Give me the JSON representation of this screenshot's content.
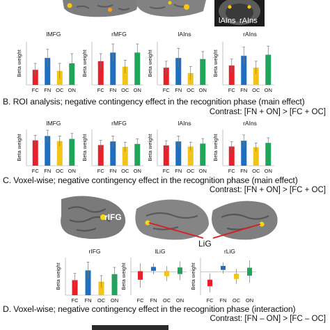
{
  "colors": {
    "FC": "#e8202a",
    "FN": "#1f6fc0",
    "OC": "#f2c318",
    "ON": "#1fa55a",
    "whisker": "#777777"
  },
  "top_brain": {
    "inset_labels": [
      "lAIns",
      "rAIns"
    ]
  },
  "section_b": {
    "title": "B. ROI analysis; negative contingency effect in the recognition phase (main effect)",
    "contrast": "Contrast: [FN + ON] > [FC + OC]"
  },
  "section_c": {
    "title": "C. Voxel-wise; negative contingency effect in the recognition phase (main effect)",
    "contrast": "Contrast: [FN + ON] > [FC + OC]",
    "brain_labels": {
      "rifg": "rIFG",
      "lig": "LiG"
    }
  },
  "section_d": {
    "title": "D. Voxel-wise; negative contingency effect in the recognition phase (interaction)",
    "contrast": "Contrast: [FN – ON] > [FC – OC]"
  },
  "chart_data": [
    {
      "type": "bar",
      "panel": "A",
      "title": "lMFG",
      "ylabel": "Beta weight",
      "categories": [
        "FC",
        "FN",
        "OC",
        "ON"
      ],
      "values": [
        1.4,
        2.5,
        1.3,
        2.0
      ],
      "errors": [
        0.6,
        0.8,
        0.7,
        0.9
      ],
      "ylim": [
        0,
        4
      ]
    },
    {
      "type": "bar",
      "panel": "A",
      "title": "rMFG",
      "ylabel": "Beta weight",
      "categories": [
        "FC",
        "FN",
        "OC",
        "ON"
      ],
      "values": [
        2.2,
        3.0,
        1.7,
        3.0
      ],
      "errors": [
        0.7,
        0.8,
        0.6,
        0.8
      ],
      "ylim": [
        0,
        4
      ]
    },
    {
      "type": "bar",
      "panel": "A",
      "title": "lAIns",
      "ylabel": "Beta weight",
      "categories": [
        "FC",
        "FN",
        "OC",
        "ON"
      ],
      "values": [
        1.6,
        2.5,
        1.1,
        2.4
      ],
      "errors": [
        0.6,
        0.9,
        0.6,
        0.7
      ],
      "ylim": [
        0,
        4
      ]
    },
    {
      "type": "bar",
      "panel": "A",
      "title": "rAIns",
      "ylabel": "Beta weight",
      "categories": [
        "FC",
        "FN",
        "OC",
        "ON"
      ],
      "values": [
        1.8,
        2.7,
        1.6,
        2.8
      ],
      "errors": [
        0.6,
        0.8,
        0.6,
        0.8
      ],
      "ylim": [
        0,
        4
      ]
    },
    {
      "type": "bar",
      "panel": "B",
      "title": "lMFG",
      "ylabel": "Beta weight",
      "categories": [
        "FC",
        "FN",
        "OC",
        "ON"
      ],
      "values": [
        7.0,
        8.2,
        6.8,
        7.4
      ],
      "errors": [
        1.4,
        1.6,
        1.4,
        1.5
      ],
      "ylim": [
        0,
        10
      ]
    },
    {
      "type": "bar",
      "panel": "B",
      "title": "rMFG",
      "ylabel": "Beta weight",
      "categories": [
        "FC",
        "FN",
        "OC",
        "ON"
      ],
      "values": [
        5.7,
        6.7,
        5.2,
        6.0
      ],
      "errors": [
        1.3,
        1.5,
        1.3,
        1.4
      ],
      "ylim": [
        0,
        10
      ]
    },
    {
      "type": "bar",
      "panel": "B",
      "title": "lAIns",
      "ylabel": "Beta weight",
      "categories": [
        "FC",
        "FN",
        "OC",
        "ON"
      ],
      "values": [
        5.6,
        6.7,
        5.3,
        6.1
      ],
      "errors": [
        1.3,
        1.5,
        1.2,
        1.4
      ],
      "ylim": [
        0,
        10
      ]
    },
    {
      "type": "bar",
      "panel": "B",
      "title": "rAIns",
      "ylabel": "Beta weight",
      "categories": [
        "FC",
        "FN",
        "OC",
        "ON"
      ],
      "values": [
        5.3,
        6.9,
        5.1,
        6.3
      ],
      "errors": [
        1.3,
        1.6,
        1.2,
        1.4
      ],
      "ylim": [
        0,
        10
      ]
    },
    {
      "type": "bar",
      "panel": "C",
      "title": "rIFG",
      "ylabel": "Beta weight",
      "categories": [
        "FC",
        "FN",
        "OC",
        "ON"
      ],
      "values": [
        2.0,
        3.3,
        1.8,
        2.8
      ],
      "errors": [
        0.9,
        1.1,
        0.8,
        0.9
      ],
      "ylim": [
        0,
        5
      ]
    },
    {
      "type": "bar",
      "panel": "C",
      "title": "lLiG",
      "ylabel": "Beta weight",
      "categories": [
        "FC",
        "FN",
        "OC",
        "ON"
      ],
      "values": [
        -0.4,
        0.3,
        -0.2,
        0.1
      ],
      "errors": [
        1.3,
        0.6,
        0.8,
        1.0
      ],
      "ylim": [
        -2.5,
        1.5
      ]
    },
    {
      "type": "bar",
      "panel": "C",
      "title": "rLiG",
      "ylabel": "Beta weight",
      "categories": [
        "FC",
        "FN",
        "OC",
        "ON"
      ],
      "values": [
        -1.2,
        0.4,
        -0.5,
        0.0
      ],
      "errors": [
        1.0,
        0.6,
        0.8,
        1.2
      ],
      "ylim": [
        -2.5,
        1.5
      ]
    }
  ]
}
